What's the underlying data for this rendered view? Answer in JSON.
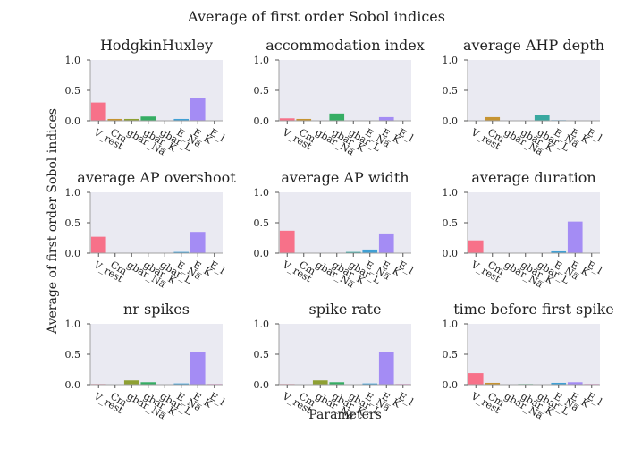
{
  "figure": {
    "title": "Average of first order Sobol indices",
    "ylabel": "Average of first order Sobol indices",
    "xlabel": "Parameters"
  },
  "colors": {
    "plot_background": "#eaeaf2",
    "axis_line": "#a0a0a0",
    "bars": [
      "#f77189",
      "#c69432",
      "#8ea033",
      "#36ad64",
      "#39a8a0",
      "#41a0d4",
      "#a48cf4",
      "#f565cc"
    ]
  },
  "chart_data": [
    {
      "type": "bar",
      "title": "HodgkinHuxley",
      "categories": [
        "V_rest",
        "Cm",
        "gbar_Na",
        "gbar_K",
        "gbar_L",
        "E_Na",
        "E_K",
        "E_l"
      ],
      "values": [
        0.3,
        0.03,
        0.03,
        0.07,
        0.0,
        0.03,
        0.37,
        0.0
      ],
      "ylim": [
        0,
        1
      ],
      "yticks": [
        "0.0",
        "0.5",
        "1.0"
      ]
    },
    {
      "type": "bar",
      "title": "accommodation index",
      "categories": [
        "V_rest",
        "Cm",
        "gbar_Na",
        "gbar_K",
        "gbar_L",
        "E_Na",
        "E_K",
        "E_l"
      ],
      "values": [
        0.04,
        0.03,
        0.0,
        0.12,
        0.0,
        0.0,
        0.06,
        0.0
      ],
      "ylim": [
        0,
        1
      ],
      "yticks": [
        "0.0",
        "0.5",
        "1.0"
      ]
    },
    {
      "type": "bar",
      "title": "average AHP depth",
      "categories": [
        "V_rest",
        "Cm",
        "gbar_Na",
        "gbar_K",
        "gbar_L",
        "E_Na",
        "E_K",
        "E_l"
      ],
      "values": [
        0.0,
        0.06,
        0.0,
        0.0,
        0.1,
        0.01,
        0.0,
        0.0
      ],
      "ylim": [
        0,
        1
      ],
      "yticks": [
        "0.0",
        "0.5",
        "1.0"
      ]
    },
    {
      "type": "bar",
      "title": "average AP overshoot",
      "categories": [
        "V_rest",
        "Cm",
        "gbar_Na",
        "gbar_K",
        "gbar_L",
        "E_Na",
        "E_K",
        "E_l"
      ],
      "values": [
        0.27,
        0.0,
        0.0,
        0.0,
        0.0,
        0.02,
        0.35,
        0.0
      ],
      "ylim": [
        0,
        1
      ],
      "yticks": [
        "0.0",
        "0.5",
        "1.0"
      ]
    },
    {
      "type": "bar",
      "title": "average AP width",
      "categories": [
        "V_rest",
        "Cm",
        "gbar_Na",
        "gbar_K",
        "gbar_L",
        "E_Na",
        "E_K",
        "E_l"
      ],
      "values": [
        0.37,
        0.0,
        0.0,
        0.0,
        0.02,
        0.06,
        0.31,
        0.0
      ],
      "ylim": [
        0,
        1
      ],
      "yticks": [
        "0.0",
        "0.5",
        "1.0"
      ]
    },
    {
      "type": "bar",
      "title": "average duration",
      "categories": [
        "V_rest",
        "Cm",
        "gbar_Na",
        "gbar_K",
        "gbar_L",
        "E_Na",
        "E_K",
        "E_l"
      ],
      "values": [
        0.21,
        0.0,
        0.0,
        0.0,
        0.0,
        0.03,
        0.52,
        0.0
      ],
      "ylim": [
        0,
        1
      ],
      "yticks": [
        "0.0",
        "0.5",
        "1.0"
      ]
    },
    {
      "type": "bar",
      "title": "nr spikes",
      "categories": [
        "V_rest",
        "Cm",
        "gbar_Na",
        "gbar_K",
        "gbar_L",
        "E_Na",
        "E_K",
        "E_l"
      ],
      "values": [
        0.01,
        0.0,
        0.07,
        0.04,
        0.0,
        0.02,
        0.53,
        0.01
      ],
      "ylim": [
        0,
        1
      ],
      "yticks": [
        "0.0",
        "0.5",
        "1.0"
      ]
    },
    {
      "type": "bar",
      "title": "spike rate",
      "categories": [
        "V_rest",
        "Cm",
        "gbar_Na",
        "gbar_K",
        "gbar_L",
        "E_Na",
        "E_K",
        "E_l"
      ],
      "values": [
        0.01,
        0.0,
        0.07,
        0.04,
        0.0,
        0.02,
        0.53,
        0.01
      ],
      "ylim": [
        0,
        1
      ],
      "yticks": [
        "0.0",
        "0.5",
        "1.0"
      ]
    },
    {
      "type": "bar",
      "title": "time before first spike",
      "categories": [
        "V_rest",
        "Cm",
        "gbar_Na",
        "gbar_K",
        "gbar_L",
        "E_Na",
        "E_K",
        "E_l"
      ],
      "values": [
        0.19,
        0.03,
        0.0,
        0.01,
        0.0,
        0.03,
        0.04,
        0.01
      ],
      "ylim": [
        0,
        1
      ],
      "yticks": [
        "0.0",
        "0.5",
        "1.0"
      ]
    }
  ]
}
